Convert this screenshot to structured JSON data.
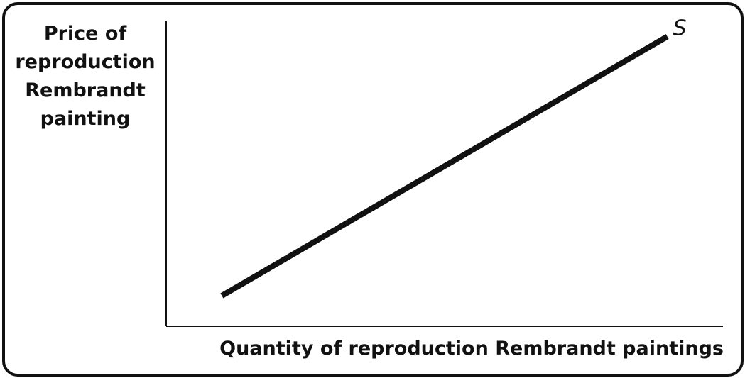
{
  "chart_data": {
    "type": "line",
    "title": "",
    "xlabel": "Quantity of reproduction Rembrandt paintings",
    "ylabel_lines": [
      "Price of",
      "reproduction",
      "Rembrandt",
      "painting"
    ],
    "xlim": [
      0,
      100
    ],
    "ylim": [
      0,
      100
    ],
    "grid": false,
    "ticks": false,
    "series": [
      {
        "name": "S",
        "x": [
          10,
          90
        ],
        "y": [
          10,
          95
        ]
      }
    ],
    "colors": {
      "axis": "#111111",
      "curve": "#111111"
    }
  }
}
